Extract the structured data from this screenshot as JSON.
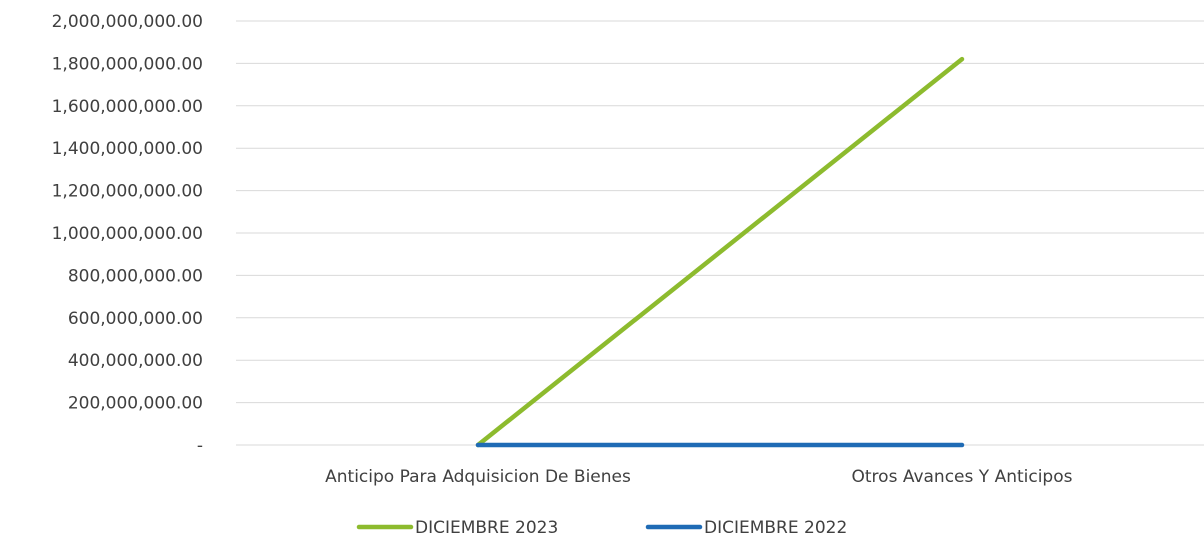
{
  "chart_data": {
    "type": "line",
    "title": "",
    "xlabel": "",
    "ylabel": "",
    "categories": [
      "Anticipo Para Adquisicion De Bienes",
      "Otros Avances Y Anticipos"
    ],
    "series": [
      {
        "name": "DICIEMBRE 2023",
        "values": [
          0,
          1820000000
        ],
        "color": "#8dbb2e"
      },
      {
        "name": "DICIEMBRE 2022",
        "values": [
          0,
          0
        ],
        "color": "#1f6bb5"
      }
    ],
    "ylim": [
      0,
      2000000000
    ],
    "yticks": [
      0,
      200000000,
      400000000,
      600000000,
      800000000,
      1000000000,
      1200000000,
      1400000000,
      1600000000,
      1800000000,
      2000000000
    ],
    "ytick_labels": [
      "-",
      "200,000,000.00",
      "400,000,000.00",
      "600,000,000.00",
      "800,000,000.00",
      "1,000,000,000.00",
      "1,200,000,000.00",
      "1,400,000,000.00",
      "1,600,000,000.00",
      "1,800,000,000.00",
      "2,000,000,000.00"
    ],
    "grid": true,
    "legend_position": "bottom"
  }
}
